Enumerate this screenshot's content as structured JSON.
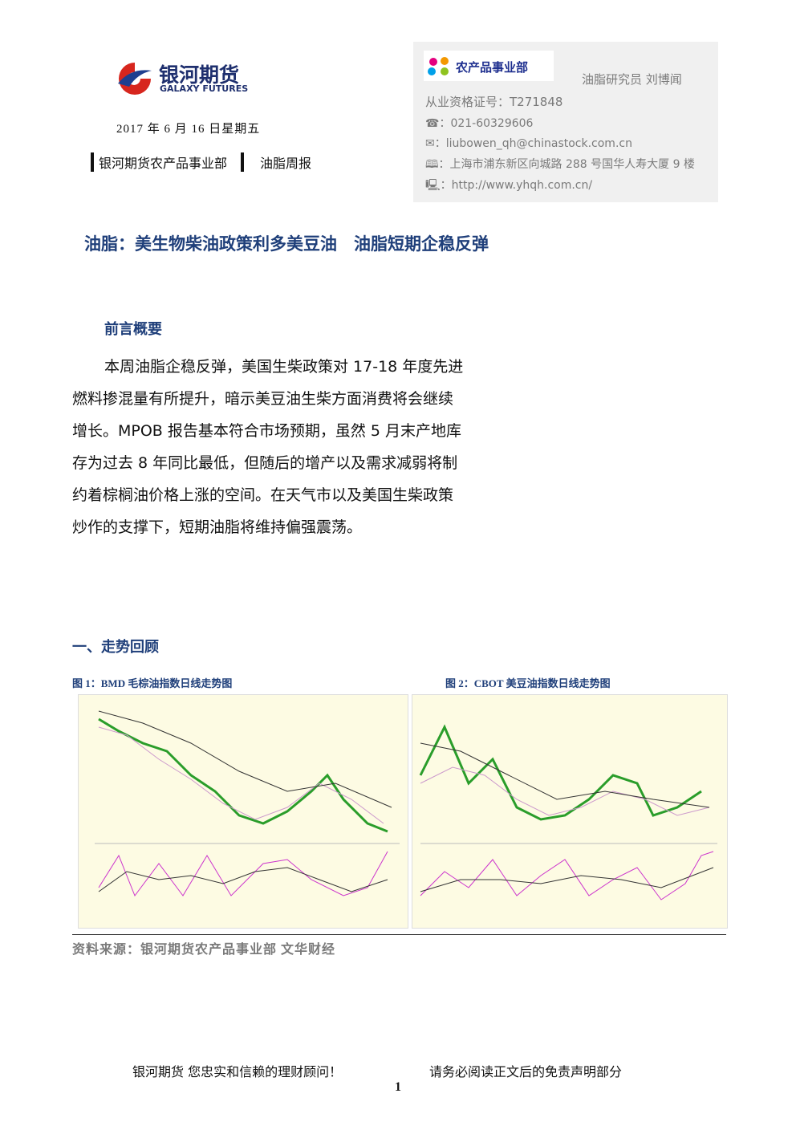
{
  "header": {
    "logo": {
      "name": "银河期货",
      "subtitle": "GALAXY FUTURES"
    },
    "date": "2017 年 6 月 16 日星期五",
    "department": "银河期货农产品事业部",
    "report_type": "油脂周报"
  },
  "contact": {
    "dept_logo": "农产品事业部",
    "researcher": "油脂研究员 刘博闻",
    "license": "从业资格证号：T271848",
    "phone": "☎：021-60329606",
    "email": "✉：liubowen_qh@chinastock.com.cn",
    "address": "🕮：上海市浦东新区向城路 288 号国华人寿大厦 9 楼",
    "website": "🖳：http://www.yhqh.com.cn/"
  },
  "title": "油脂：美生物柴油政策利多美豆油　油脂短期企稳反弹",
  "summary": {
    "heading": "前言概要",
    "lines": [
      "本周油脂企稳反弹，美国生柴政策对 17-18 年度先进",
      "燃料掺混量有所提升，暗示美豆油生柴方面消费将会继续",
      "增长。MPOB 报告基本符合市场预期，虽然 5 月末产地库",
      "存为过去 8 年同比最低，但随后的增产以及需求减弱将制",
      "约着棕榈油价格上涨的空间。在天气市以及美国生柴政策",
      "炒作的支撑下，短期油脂将维持偏强震荡。"
    ]
  },
  "review": {
    "heading": "一、走势回顾",
    "figures": [
      {
        "caption": "图 1：BMD 毛棕油指数日线走势图"
      },
      {
        "caption": "图 2：CBOT 美豆油指数日线走势图"
      }
    ],
    "source": "资料来源：银河期货农产品事业部 文华财经"
  },
  "footer": {
    "slogan": "银河期货 您忠实和信赖的理财顾问！",
    "disclaimer": "请务必阅读正文后的免责声明部分",
    "page": "1"
  }
}
